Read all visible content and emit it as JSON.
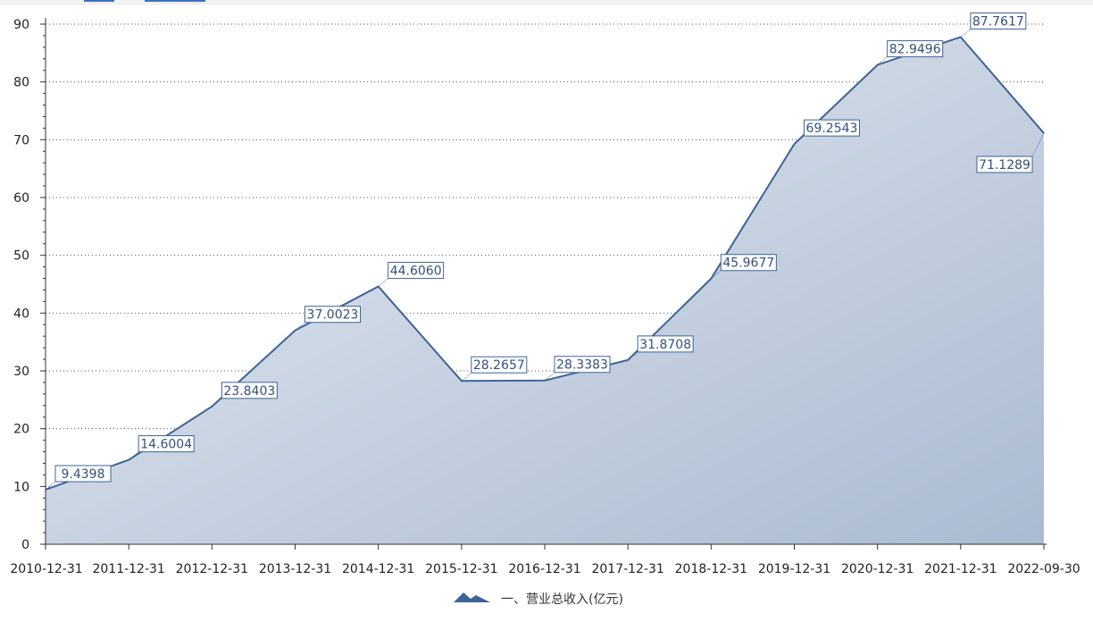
{
  "chart_data": {
    "type": "area",
    "categories": [
      "2010-12-31",
      "2011-12-31",
      "2012-12-31",
      "2013-12-31",
      "2014-12-31",
      "2015-12-31",
      "2016-12-31",
      "2017-12-31",
      "2018-12-31",
      "2019-12-31",
      "2020-12-31",
      "2021-12-31",
      "2022-09-30"
    ],
    "series": [
      {
        "name": "一、营业总收入(亿元)",
        "values": [
          9.4398,
          14.6004,
          23.8403,
          37.0023,
          44.606,
          28.2657,
          28.3383,
          31.8708,
          45.9677,
          69.2543,
          82.9496,
          87.7617,
          71.1289
        ],
        "labels": [
          "9.4398",
          "14.6004",
          "23.8403",
          "37.0023",
          "44.6060",
          "28.2657",
          "28.3383",
          "31.8708",
          "45.9677",
          "69.2543",
          "82.9496",
          "87.7617",
          "71.1289"
        ]
      }
    ],
    "ylim": [
      0,
      90
    ],
    "yticks": [
      0,
      10,
      20,
      30,
      40,
      50,
      60,
      70,
      80,
      90
    ],
    "grid": true,
    "legend": "bottom-center",
    "colors": {
      "line": "#3d6496",
      "fill_light": "#e7ebf3",
      "fill_dark": "#aabbd1",
      "label_border": "#3d6496",
      "label_text": "#33507a"
    }
  }
}
